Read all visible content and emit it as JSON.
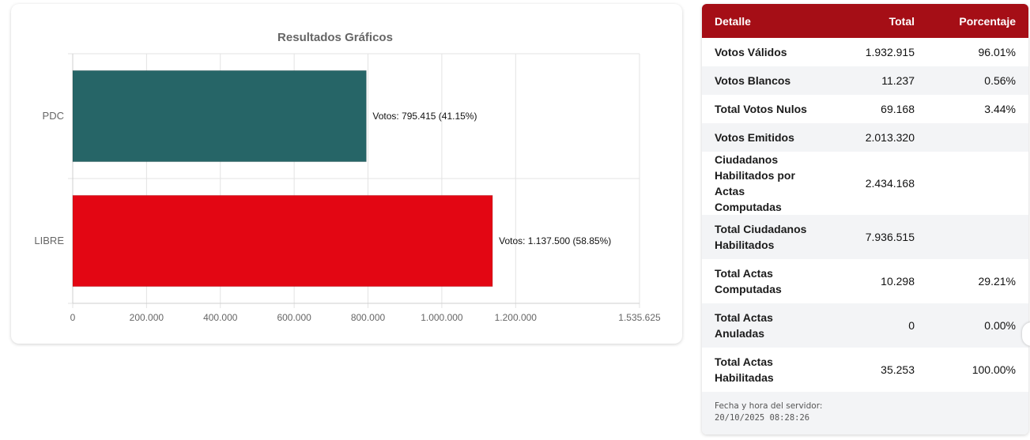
{
  "chart_data": {
    "type": "bar",
    "orientation": "horizontal",
    "title": "Resultados Gráficos",
    "categories": [
      "PDC",
      "LIBRE"
    ],
    "values": [
      795415,
      1137500
    ],
    "data_labels": [
      "Votos: 795.415 (41.15%)",
      "Votos: 1.137.500 (58.85%)"
    ],
    "colors": [
      "#266567",
      "#e30613"
    ],
    "xlim": [
      0,
      1535625
    ],
    "xticks": [
      0,
      200000,
      400000,
      600000,
      800000,
      1000000,
      1200000,
      1535625
    ],
    "xtick_labels": [
      "0",
      "200.000",
      "400.000",
      "600.000",
      "800.000",
      "1.000.000",
      "1.200.000",
      "1.535.625"
    ],
    "grid": true,
    "legend": "none"
  },
  "table": {
    "headers": [
      "Detalle",
      "Total",
      "Porcentaje"
    ],
    "rows": [
      {
        "label": "Votos Válidos",
        "total": "1.932.915",
        "pct": "96.01%"
      },
      {
        "label": "Votos Blancos",
        "total": "11.237",
        "pct": "0.56%"
      },
      {
        "label": "Total Votos Nulos",
        "total": "69.168",
        "pct": "3.44%"
      },
      {
        "label": "Votos Emitidos",
        "total": "2.013.320",
        "pct": ""
      },
      {
        "label": "Ciudadanos Habilitados por Actas Computadas",
        "total": "2.434.168",
        "pct": ""
      },
      {
        "label": "Total Ciudadanos Habilitados",
        "total": "7.936.515",
        "pct": ""
      },
      {
        "label": "Total Actas Computadas",
        "total": "10.298",
        "pct": "29.21%"
      },
      {
        "label": "Total Actas Anuladas",
        "total": "0",
        "pct": "0.00%"
      },
      {
        "label": "Total Actas Habilitadas",
        "total": "35.253",
        "pct": "100.00%"
      }
    ],
    "header_color": "#a50e16"
  },
  "server": {
    "label": "Fecha y hora del servidor:",
    "datetime": "20/10/2025 08:28:26"
  }
}
